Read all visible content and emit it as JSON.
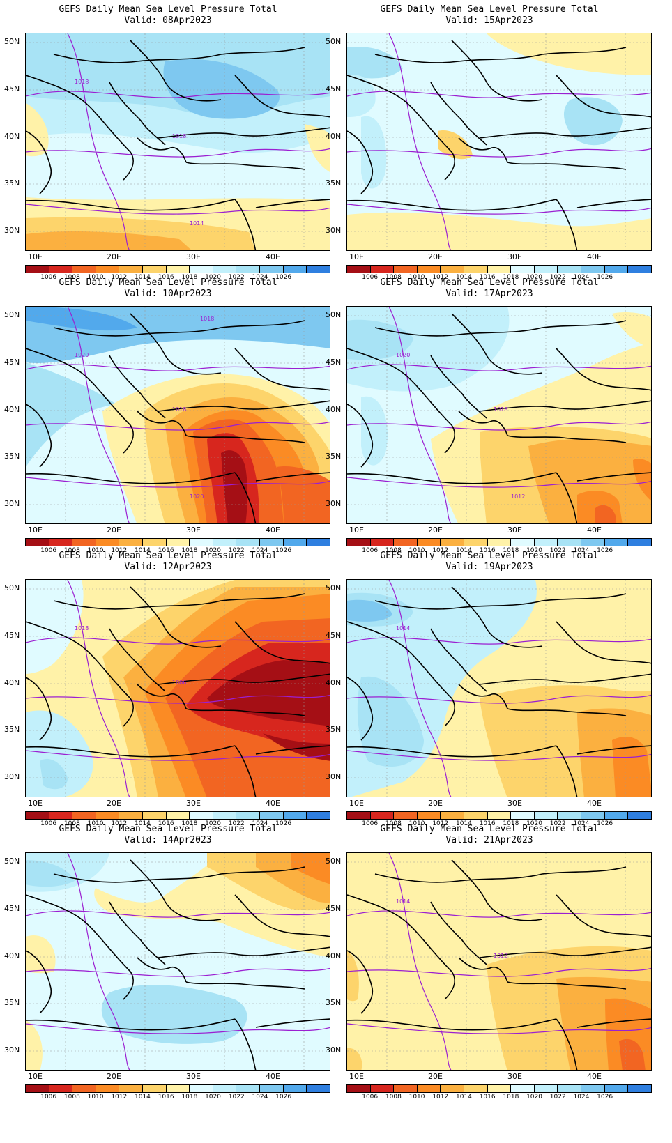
{
  "title_line": "GEFS Daily Mean Sea Level Pressure Total",
  "valid_prefix": "Valid:",
  "lat_labels": [
    "50N",
    "45N",
    "40N",
    "35N",
    "30N"
  ],
  "lon_labels": [
    "10E",
    "20E",
    "30E",
    "40E"
  ],
  "colorbar": {
    "colors": [
      "#a50f15",
      "#d7261e",
      "#f26522",
      "#fb8b24",
      "#fbb040",
      "#fdd46b",
      "#fff2a8",
      "#e0fbff",
      "#c2f0fb",
      "#a8e3f5",
      "#7ec8f0",
      "#52a9ec",
      "#2f7fe0"
    ],
    "ticks": [
      "1006",
      "1008",
      "1010",
      "1012",
      "1014",
      "1016",
      "1018",
      "1020",
      "1022",
      "1024",
      "1026"
    ]
  },
  "panels": [
    {
      "date": "08Apr2023",
      "scheme": "cool1",
      "contour_labels": [
        "1018",
        "1018",
        "1014"
      ]
    },
    {
      "date": "15Apr2023",
      "scheme": "cool2",
      "contour_labels": []
    },
    {
      "date": "10Apr2023",
      "scheme": "low1",
      "contour_labels": [
        "1020",
        "1018",
        "1020",
        "1018"
      ]
    },
    {
      "date": "17Apr2023",
      "scheme": "mild1",
      "contour_labels": [
        "1020",
        "1018",
        "1012"
      ]
    },
    {
      "date": "12Apr2023",
      "scheme": "low2",
      "contour_labels": [
        "1018",
        "1006"
      ]
    },
    {
      "date": "19Apr2023",
      "scheme": "mild2",
      "contour_labels": [
        "1014"
      ]
    },
    {
      "date": "14Apr2023",
      "scheme": "cool3",
      "contour_labels": []
    },
    {
      "date": "21Apr2023",
      "scheme": "warm",
      "contour_labels": [
        "1014",
        "1012"
      ]
    }
  ]
}
